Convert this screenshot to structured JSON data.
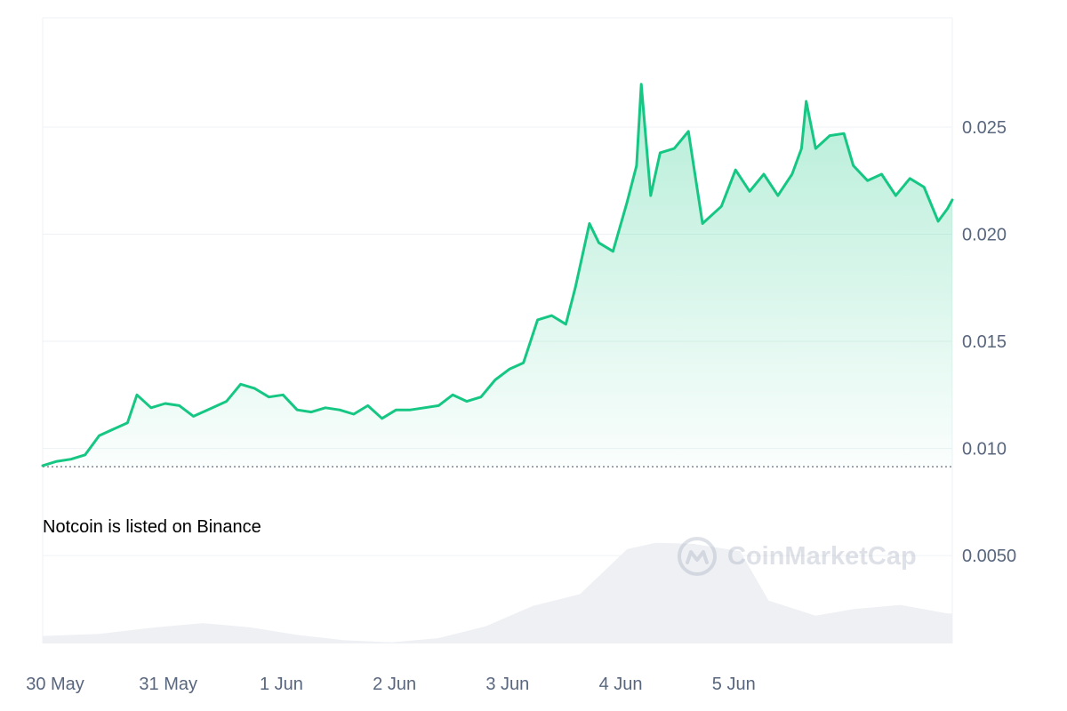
{
  "annotation": "Notcoin is listed on Binance",
  "watermark": "CoinMarketCap",
  "colors": {
    "line": "#16c784",
    "fill_top": "#16c784",
    "volume": "#eef0f4",
    "grid": "#eff2f5",
    "axis_text": "#58667e",
    "baseline": "#7f8694"
  },
  "chart_data": {
    "type": "area",
    "x_unit": "date",
    "x_tick_labels": [
      "30 May",
      "31 May",
      "1 Jun",
      "2 Jun",
      "3 Jun",
      "4 Jun",
      "5 Jun"
    ],
    "y_tick_labels": [
      "0.025",
      "0.020",
      "0.015",
      "0.010",
      "0.0050"
    ],
    "y_ticks": [
      0.025,
      0.02,
      0.015,
      0.01,
      0.005
    ],
    "ylim": [
      0.0009,
      0.0301
    ],
    "baseline_value": 0.00915,
    "grid": true,
    "y_axis_position": "right",
    "price_series": [
      [
        "2024-05-30T00:00",
        0.0092
      ],
      [
        "2024-05-30T03:00",
        0.0094
      ],
      [
        "2024-05-30T06:00",
        0.0095
      ],
      [
        "2024-05-30T09:00",
        0.0097
      ],
      [
        "2024-05-30T12:00",
        0.0106
      ],
      [
        "2024-05-30T15:00",
        0.0109
      ],
      [
        "2024-05-30T18:00",
        0.0112
      ],
      [
        "2024-05-30T20:00",
        0.0125
      ],
      [
        "2024-05-30T23:00",
        0.0119
      ],
      [
        "2024-05-31T02:00",
        0.0121
      ],
      [
        "2024-05-31T05:00",
        0.012
      ],
      [
        "2024-05-31T08:00",
        0.0115
      ],
      [
        "2024-05-31T11:00",
        0.0118
      ],
      [
        "2024-05-31T15:00",
        0.0122
      ],
      [
        "2024-05-31T18:00",
        0.013
      ],
      [
        "2024-05-31T21:00",
        0.0128
      ],
      [
        "2024-06-01T00:00",
        0.0124
      ],
      [
        "2024-06-01T03:00",
        0.0125
      ],
      [
        "2024-06-01T06:00",
        0.0118
      ],
      [
        "2024-06-01T09:00",
        0.0117
      ],
      [
        "2024-06-01T12:00",
        0.0119
      ],
      [
        "2024-06-01T15:00",
        0.0118
      ],
      [
        "2024-06-01T18:00",
        0.0116
      ],
      [
        "2024-06-01T21:00",
        0.012
      ],
      [
        "2024-06-02T00:00",
        0.0114
      ],
      [
        "2024-06-02T03:00",
        0.0118
      ],
      [
        "2024-06-02T06:00",
        0.0118
      ],
      [
        "2024-06-02T09:00",
        0.0119
      ],
      [
        "2024-06-02T12:00",
        0.012
      ],
      [
        "2024-06-02T15:00",
        0.0125
      ],
      [
        "2024-06-02T18:00",
        0.0122
      ],
      [
        "2024-06-02T21:00",
        0.0124
      ],
      [
        "2024-06-03T00:00",
        0.0132
      ],
      [
        "2024-06-03T03:00",
        0.0137
      ],
      [
        "2024-06-03T06:00",
        0.014
      ],
      [
        "2024-06-03T09:00",
        0.016
      ],
      [
        "2024-06-03T12:00",
        0.0162
      ],
      [
        "2024-06-03T15:00",
        0.0158
      ],
      [
        "2024-06-03T17:00",
        0.0175
      ],
      [
        "2024-06-03T20:00",
        0.0205
      ],
      [
        "2024-06-03T22:00",
        0.0196
      ],
      [
        "2024-06-04T01:00",
        0.0192
      ],
      [
        "2024-06-04T04:00",
        0.0215
      ],
      [
        "2024-06-04T06:00",
        0.0232
      ],
      [
        "2024-06-04T07:00",
        0.027
      ],
      [
        "2024-06-04T09:00",
        0.0218
      ],
      [
        "2024-06-04T11:00",
        0.0238
      ],
      [
        "2024-06-04T14:00",
        0.024
      ],
      [
        "2024-06-04T17:00",
        0.0248
      ],
      [
        "2024-06-04T20:00",
        0.0205
      ],
      [
        "2024-06-05T00:00",
        0.0213
      ],
      [
        "2024-06-05T03:00",
        0.023
      ],
      [
        "2024-06-05T06:00",
        0.022
      ],
      [
        "2024-06-05T09:00",
        0.0228
      ],
      [
        "2024-06-05T12:00",
        0.0218
      ],
      [
        "2024-06-05T15:00",
        0.0228
      ],
      [
        "2024-06-05T17:00",
        0.024
      ],
      [
        "2024-06-05T18:00",
        0.0262
      ],
      [
        "2024-06-05T20:00",
        0.024
      ],
      [
        "2024-06-05T23:00",
        0.0246
      ],
      [
        "2024-06-06T02:00",
        0.0247
      ],
      [
        "2024-06-06T04:00",
        0.0232
      ],
      [
        "2024-06-06T07:00",
        0.0225
      ],
      [
        "2024-06-06T10:00",
        0.0228
      ],
      [
        "2024-06-06T13:00",
        0.0218
      ],
      [
        "2024-06-06T16:00",
        0.0226
      ],
      [
        "2024-06-06T19:00",
        0.0222
      ],
      [
        "2024-06-06T22:00",
        0.0206
      ],
      [
        "2024-06-07T00:00",
        0.0212
      ],
      [
        "2024-06-07T01:00",
        0.0216
      ]
    ],
    "volume_series": [
      [
        "2024-05-30T00:00",
        0.00125
      ],
      [
        "2024-05-30T12:00",
        0.00135
      ],
      [
        "2024-05-31T00:00",
        0.00165
      ],
      [
        "2024-05-31T10:00",
        0.00185
      ],
      [
        "2024-05-31T20:00",
        0.00165
      ],
      [
        "2024-06-01T06:00",
        0.0013
      ],
      [
        "2024-06-01T16:00",
        0.00105
      ],
      [
        "2024-06-02T02:00",
        0.00095
      ],
      [
        "2024-06-02T12:00",
        0.00115
      ],
      [
        "2024-06-02T22:00",
        0.0017
      ],
      [
        "2024-06-03T08:00",
        0.00265
      ],
      [
        "2024-06-03T18:00",
        0.0032
      ],
      [
        "2024-06-04T04:00",
        0.0053
      ],
      [
        "2024-06-04T10:00",
        0.0056
      ],
      [
        "2024-06-04T18:00",
        0.00555
      ],
      [
        "2024-06-05T04:00",
        0.0052
      ],
      [
        "2024-06-05T10:00",
        0.0029
      ],
      [
        "2024-06-05T20:00",
        0.0022
      ],
      [
        "2024-06-06T04:00",
        0.0025
      ],
      [
        "2024-06-06T14:00",
        0.0027
      ],
      [
        "2024-06-07T00:00",
        0.0023
      ],
      [
        "2024-06-07T01:00",
        0.0023
      ]
    ]
  }
}
